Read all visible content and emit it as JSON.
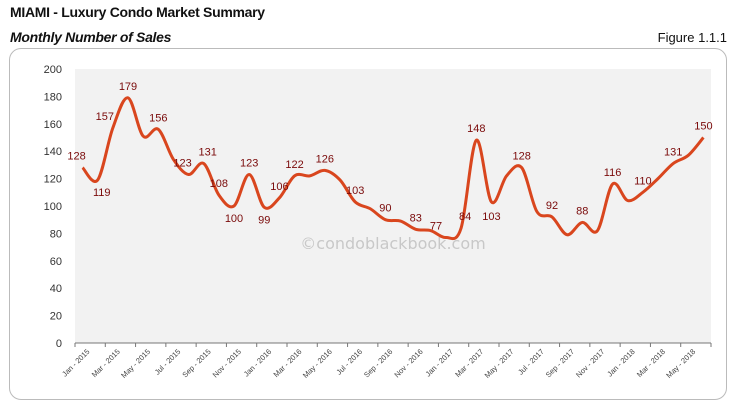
{
  "header": {
    "title": "MIAMI - Luxury Condo Market Summary",
    "subtitle": "Monthly Number of Sales",
    "figure": "Figure 1.1.1"
  },
  "watermark": "©condoblackbook.com",
  "colors": {
    "line": "#d9461e",
    "label": "#7a0a0a",
    "plot_bg": "#f2f2f2"
  },
  "chart_data": {
    "type": "line",
    "title": "Monthly Number of Sales",
    "ylim": [
      0,
      200
    ],
    "yticks": [
      0,
      20,
      40,
      60,
      80,
      100,
      120,
      140,
      160,
      180,
      200
    ],
    "grid": false,
    "smooth": true,
    "x": [
      "Jan - 2015",
      "Feb - 2015",
      "Mar - 2015",
      "Apr - 2015",
      "May - 2015",
      "Jun - 2015",
      "Jul - 2015",
      "Aug - 2015",
      "Sep - 2015",
      "Oct - 2015",
      "Nov - 2015",
      "Dec - 2015",
      "Jan - 2016",
      "Feb - 2016",
      "Mar - 2016",
      "Apr - 2016",
      "May - 2016",
      "Jun - 2016",
      "Jul - 2016",
      "Aug - 2016",
      "Sep - 2016",
      "Oct - 2016",
      "Nov - 2016",
      "Dec - 2016",
      "Jan - 2017",
      "Feb - 2017",
      "Mar - 2017",
      "Apr - 2017",
      "May - 2017",
      "Jun - 2017",
      "Jul - 2017",
      "Aug - 2017",
      "Sep - 2017",
      "Oct - 2017",
      "Nov - 2017",
      "Dec - 2017",
      "Jan - 2018",
      "Feb - 2018",
      "Mar - 2018",
      "Apr - 2018",
      "May - 2018",
      "Jun - 2018"
    ],
    "xtick_labels": [
      "Jan - 2015",
      "Mar - 2015",
      "May - 2015",
      "Jul - 2015",
      "Sep - 2015",
      "Nov - 2015",
      "Jan - 2016",
      "Mar - 2016",
      "May - 2016",
      "Jul - 2016",
      "Sep - 2016",
      "Nov - 2016",
      "Jan - 2017",
      "Mar - 2017",
      "May - 2017",
      "Jul - 2017",
      "Sep - 2017",
      "Nov - 2017",
      "Jan - 2018",
      "Mar - 2018",
      "May - 2018"
    ],
    "values": [
      128,
      119,
      157,
      179,
      151,
      156,
      134,
      123,
      131,
      108,
      100,
      123,
      99,
      106,
      122,
      122,
      126,
      119,
      103,
      98,
      90,
      89,
      83,
      82,
      77,
      84,
      148,
      103,
      122,
      128,
      96,
      92,
      79,
      88,
      82,
      116,
      104,
      110,
      120,
      131,
      137,
      150
    ],
    "data_labels": [
      128,
      119,
      157,
      179,
      null,
      156,
      null,
      123,
      131,
      108,
      100,
      123,
      99,
      106,
      122,
      null,
      126,
      null,
      103,
      null,
      90,
      null,
      83,
      null,
      77,
      84,
      148,
      103,
      null,
      128,
      null,
      92,
      null,
      88,
      null,
      116,
      null,
      110,
      null,
      131,
      null,
      150
    ]
  }
}
